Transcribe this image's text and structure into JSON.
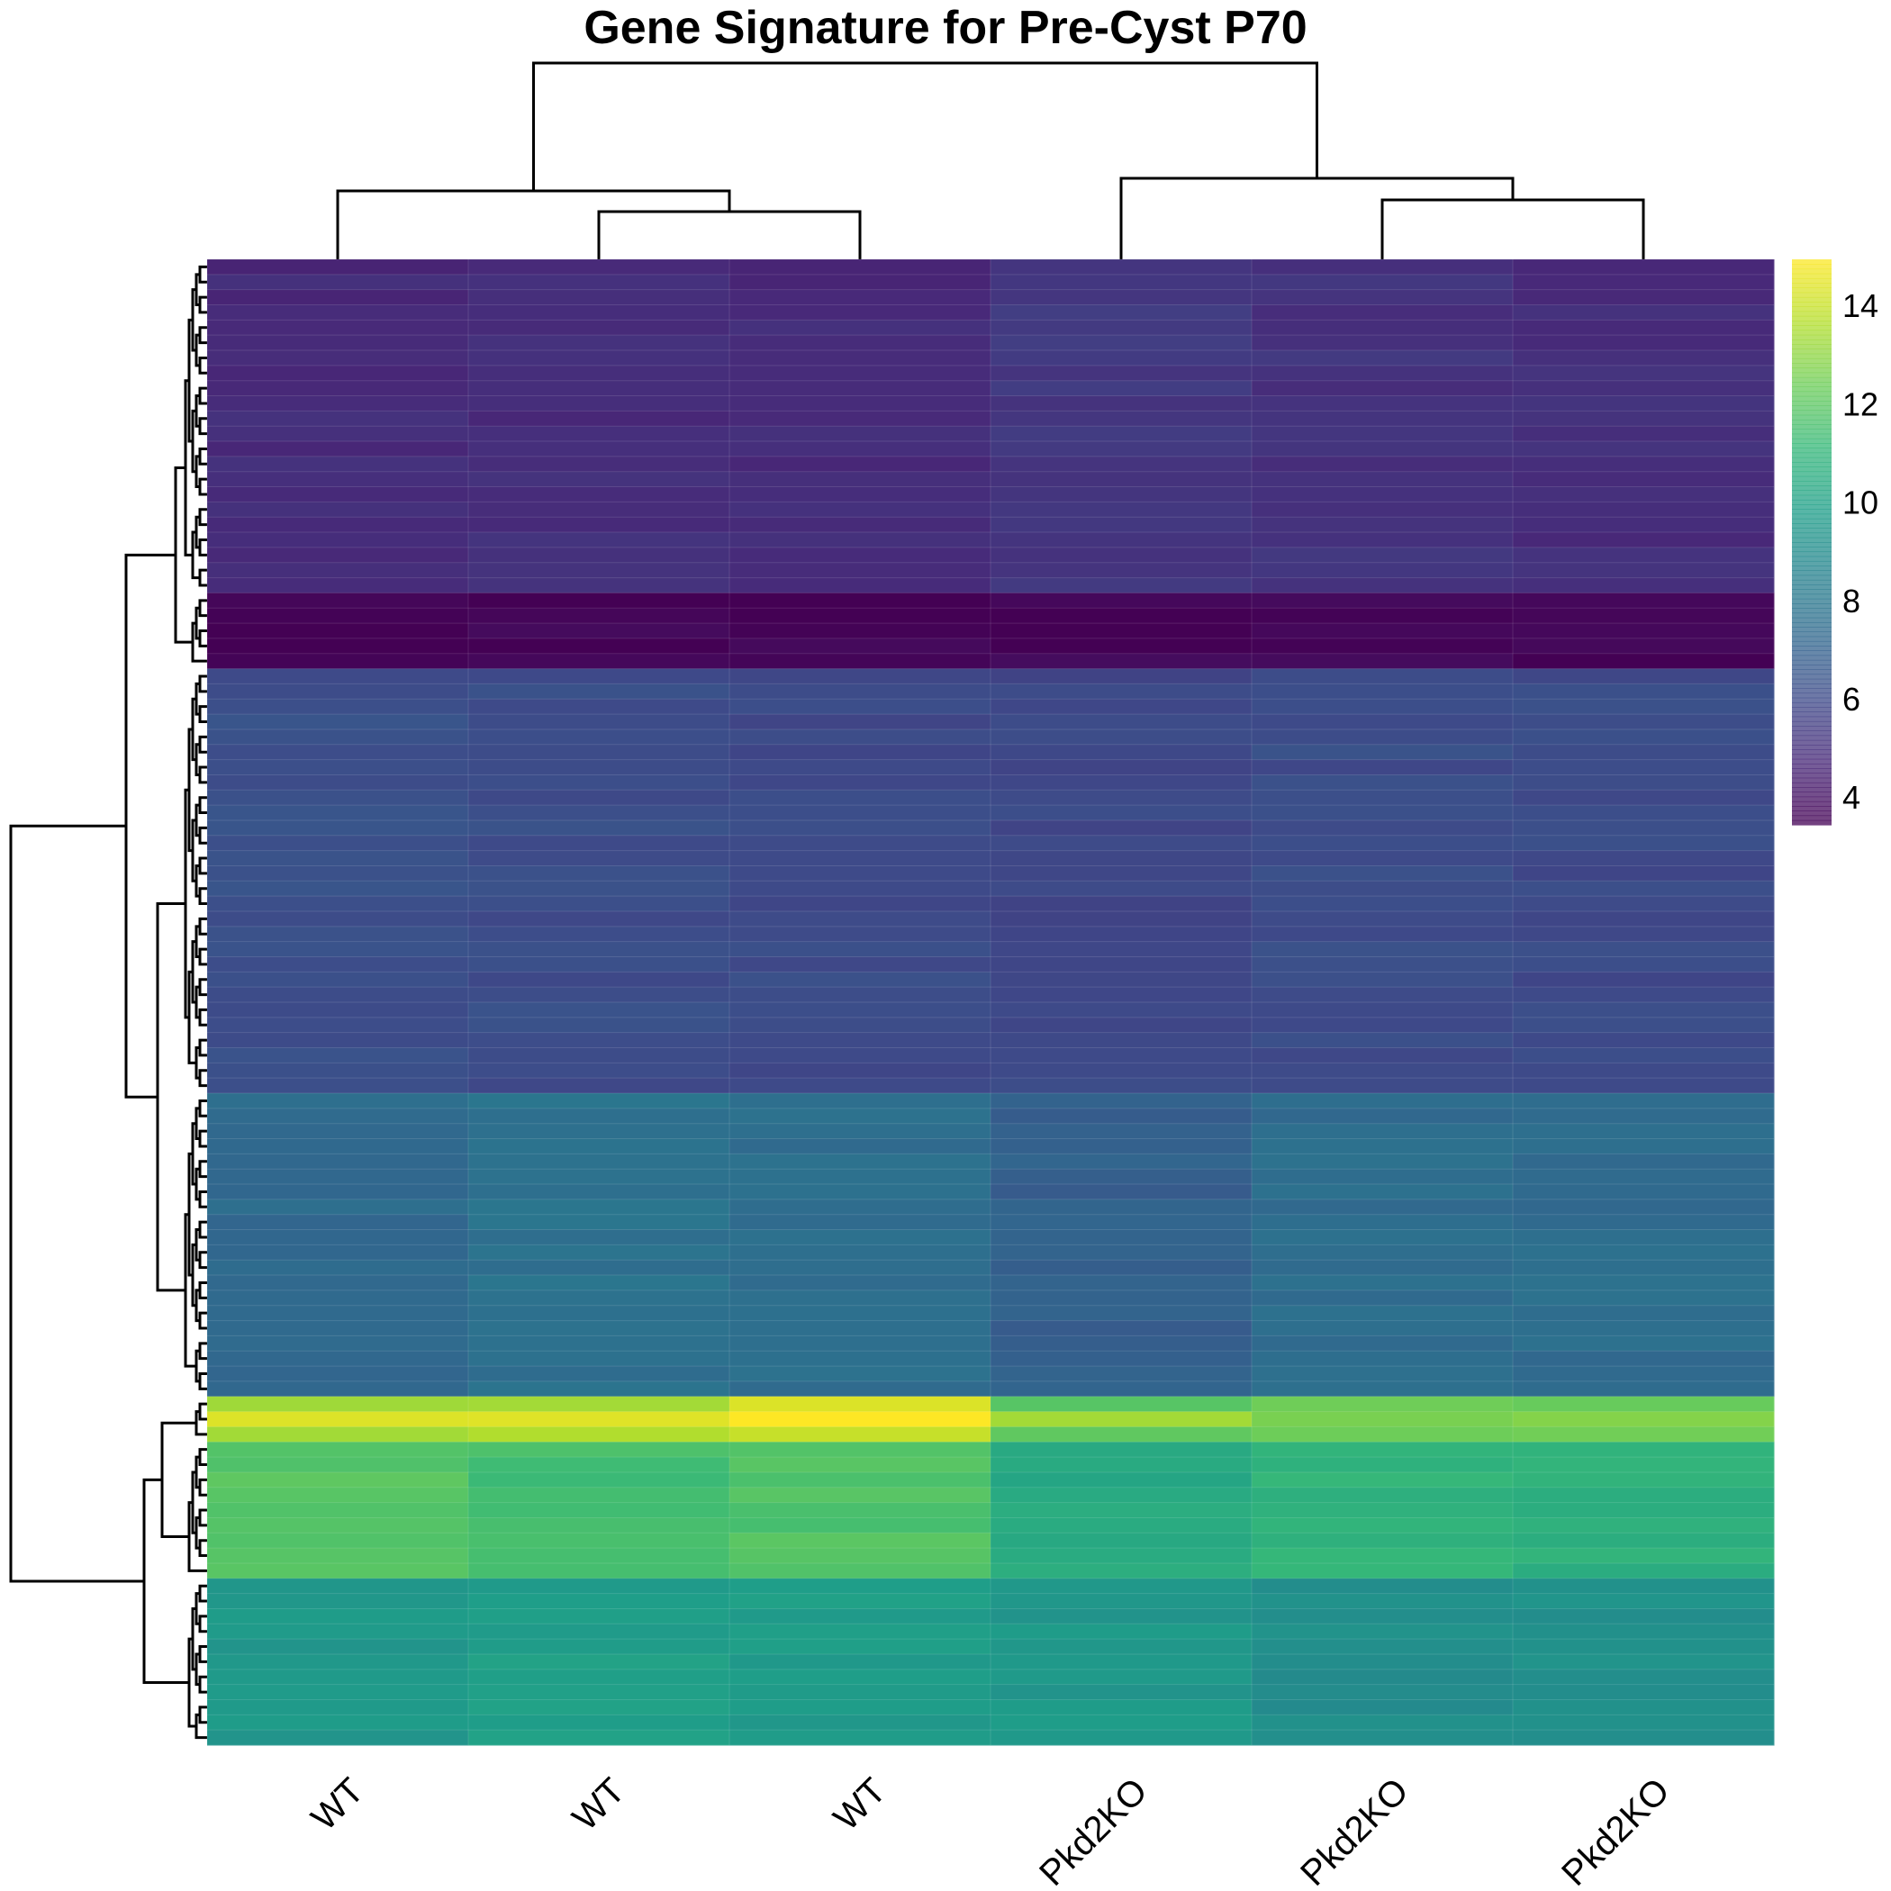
{
  "chart_data": {
    "type": "heatmap",
    "title": "Gene Signature for Pre-Cyst P70",
    "columns": [
      "WT",
      "WT",
      "WT",
      "Pkd2KO",
      "Pkd2KO",
      "Pkd2KO"
    ],
    "color_scale": {
      "name": "viridis",
      "range": [
        3.5,
        15
      ],
      "ticks": [
        4,
        6,
        8,
        10,
        12,
        14
      ]
    },
    "row_blocks": [
      {
        "rows": 22,
        "values": [
          4.9,
          5.0,
          4.9,
          5.4,
          5.2,
          5.0
        ]
      },
      {
        "rows": 5,
        "values": [
          3.6,
          3.6,
          3.6,
          3.6,
          3.6,
          3.6
        ]
      },
      {
        "rows": 28,
        "values": [
          6.3,
          6.2,
          6.1,
          6.0,
          6.2,
          6.1
        ]
      },
      {
        "rows": 20,
        "values": [
          7.5,
          7.8,
          7.6,
          7.0,
          7.6,
          7.6
        ]
      },
      {
        "rows": 3,
        "values": [
          13.3,
          13.5,
          14.2,
          12.0,
          12.6,
          12.3
        ]
      },
      {
        "rows": 9,
        "values": [
          12.0,
          11.5,
          11.8,
          10.5,
          11.0,
          10.8
        ]
      },
      {
        "rows": 11,
        "values": [
          9.6,
          9.9,
          9.8,
          9.6,
          9.2,
          9.3
        ]
      }
    ],
    "highlight_row": {
      "block": 4,
      "row": 1,
      "values": [
        14.6,
        14.6,
        15.0,
        13.4,
        12.8,
        13.0
      ]
    },
    "column_dendrogram": true,
    "row_dendrogram": true,
    "legend": "right"
  }
}
